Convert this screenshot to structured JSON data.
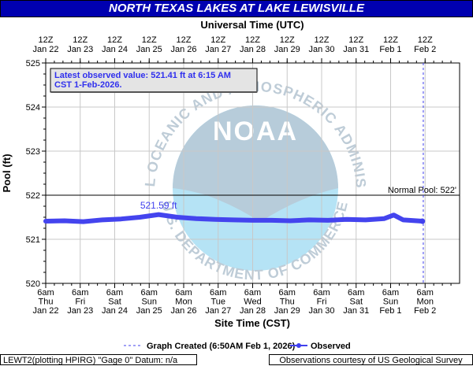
{
  "header": {
    "title": "NORTH TEXAS LAKES AT LAKE LEWISVILLE"
  },
  "top_axis_title": "Universal Time (UTC)",
  "latest_box": {
    "line1": "Latest observed value: 521.41 ft at 6:15 AM",
    "line2": "CST 1-Feb-2026."
  },
  "footer": {
    "left": "LEWT2(plotting HPIRG) \"Gage 0\" Datum: n/a",
    "right": "Observations courtesy of US Geological Survey"
  },
  "watermark": {
    "ring_text": "NATIONAL OCEANIC AND ATMOSPHERIC ADMINISTRATION",
    "bottom_text": "U.S. DEPARTMENT OF COMMERCE",
    "logo_text": "NOAA"
  },
  "colors": {
    "banner": "#0000b0",
    "series": "#4040ee",
    "plot_bg": "#ffffff",
    "grid": "#c8c8c8"
  },
  "chart_data": {
    "type": "line",
    "title": "NORTH TEXAS LAKES AT LAKE LEWISVILLE",
    "xlabel": "Site Time (CST)",
    "ylabel": "Pool (ft)",
    "x_start": "2026-01-22 06:00",
    "x_end": "2026-02-02 06:00",
    "ylim": [
      520,
      525
    ],
    "y_ticks": [
      "520",
      "521",
      "522",
      "523",
      "524",
      "525"
    ],
    "bottom_ticks": [
      [
        "6am",
        "Thu",
        "Jan 22"
      ],
      [
        "6am",
        "Fri",
        "Jan 23"
      ],
      [
        "6am",
        "Sat",
        "Jan 24"
      ],
      [
        "6am",
        "Sun",
        "Jan 25"
      ],
      [
        "6am",
        "Mon",
        "Jan 26"
      ],
      [
        "6am",
        "Tue",
        "Jan 27"
      ],
      [
        "6am",
        "Wed",
        "Jan 28"
      ],
      [
        "6am",
        "Thu",
        "Jan 29"
      ],
      [
        "6am",
        "Fri",
        "Jan 30"
      ],
      [
        "6am",
        "Sat",
        "Jan 31"
      ],
      [
        "6am",
        "Sun",
        "Feb 1"
      ],
      [
        "6am",
        "Mon",
        "Feb 2"
      ]
    ],
    "top_ticks": [
      [
        "12Z",
        "Jan 22"
      ],
      [
        "12Z",
        "Jan 23"
      ],
      [
        "12Z",
        "Jan 24"
      ],
      [
        "12Z",
        "Jan 25"
      ],
      [
        "12Z",
        "Jan 26"
      ],
      [
        "12Z",
        "Jan 27"
      ],
      [
        "12Z",
        "Jan 28"
      ],
      [
        "12Z",
        "Jan 29"
      ],
      [
        "12Z",
        "Jan 30"
      ],
      [
        "12Z",
        "Jan 31"
      ],
      [
        "12Z",
        "Feb 1"
      ],
      [
        "12Z",
        "Feb 2"
      ]
    ],
    "reference_lines": [
      {
        "label": "Normal Pool: 522'",
        "value": 522
      }
    ],
    "graph_created": {
      "label": "Graph Created (6:50AM Feb 1, 2026)",
      "time": "2026-02-01 06:50"
    },
    "legend": {
      "created_label": "Graph Created (6:50AM Feb 1, 2026)",
      "observed_label": "Observed",
      "placement": "bottom"
    },
    "annotations": [
      {
        "label": "521.59 ft",
        "time": "2026-01-25 06:00",
        "value": 521.59
      }
    ],
    "grid": true,
    "series": [
      {
        "name": "Observed",
        "x": [
          "2026-01-22 06:00",
          "2026-01-22 18:00",
          "2026-01-23 06:00",
          "2026-01-23 18:00",
          "2026-01-24 06:00",
          "2026-01-24 18:00",
          "2026-01-25 06:00",
          "2026-01-25 18:00",
          "2026-01-26 06:00",
          "2026-01-26 18:00",
          "2026-01-27 06:00",
          "2026-01-27 18:00",
          "2026-01-28 06:00",
          "2026-01-28 18:00",
          "2026-01-29 06:00",
          "2026-01-29 18:00",
          "2026-01-30 06:00",
          "2026-01-30 18:00",
          "2026-01-31 06:00",
          "2026-01-31 12:00",
          "2026-01-31 18:00",
          "2026-02-01 06:15"
        ],
        "y": [
          521.41,
          521.42,
          521.4,
          521.44,
          521.46,
          521.5,
          521.56,
          521.5,
          521.47,
          521.45,
          521.44,
          521.43,
          521.43,
          521.42,
          521.44,
          521.43,
          521.45,
          521.44,
          521.47,
          521.55,
          521.44,
          521.41
        ]
      }
    ]
  }
}
